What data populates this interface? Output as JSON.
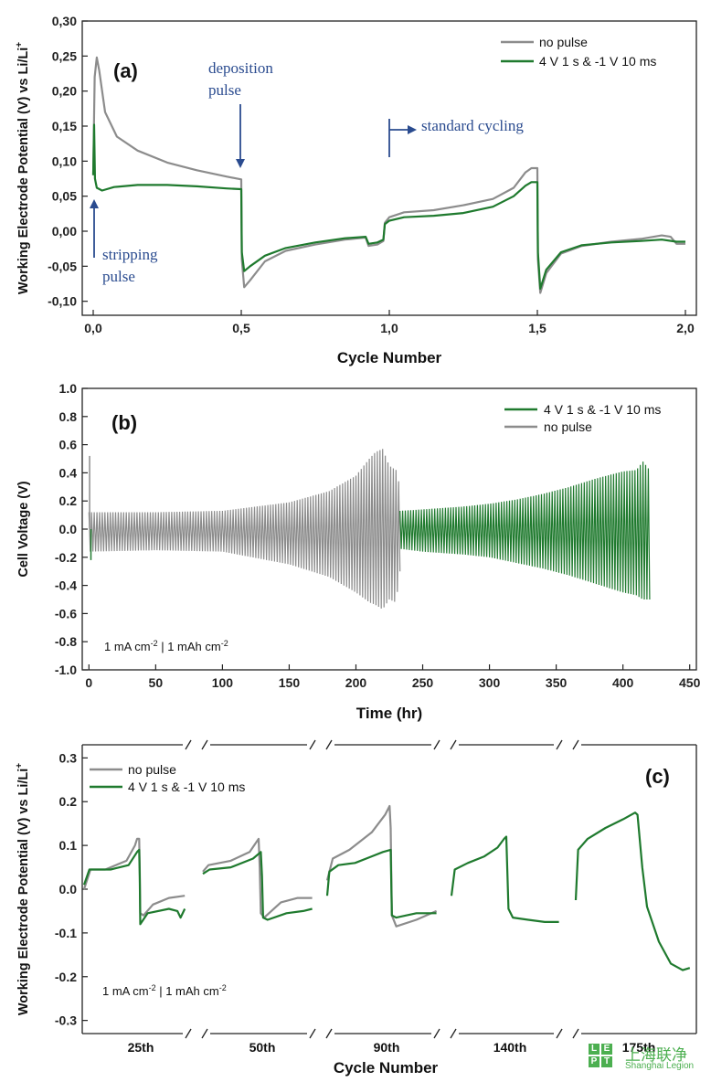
{
  "colors": {
    "no_pulse": "#8c8c8c",
    "pulse": "#1f7a2e",
    "annotation": "#2a4b8f"
  },
  "chart_data": [
    {
      "panel": "(a)",
      "type": "line",
      "xlabel": "Cycle Number",
      "ylabel": "Working Electrode Potential (V) vs Li/Li",
      "ylabel_sup": "+",
      "xlim": [
        0,
        2.0
      ],
      "ylim": [
        -0.12,
        0.3
      ],
      "xticks": [
        0,
        0.5,
        1.0,
        1.5,
        2.0
      ],
      "xtick_labels": [
        "0,0",
        "0,5",
        "1,0",
        "1,5",
        "2,0"
      ],
      "yticks": [
        -0.1,
        -0.05,
        0,
        0.05,
        0.1,
        0.15,
        0.2,
        0.25,
        0.3
      ],
      "ytick_labels": [
        "-0,10",
        "-0,05",
        "0,00",
        "0,05",
        "0,10",
        "0,15",
        "0,20",
        "0,25",
        "0,30"
      ],
      "legend": [
        "no pulse",
        "4 V 1 s & -1 V 10 ms"
      ],
      "annotations": {
        "deposition": [
          "deposition",
          "pulse"
        ],
        "stripping": [
          "stripping",
          "pulse"
        ],
        "standard": "standard cycling"
      },
      "series": [
        {
          "name": "no pulse",
          "points": [
            [
              0,
              0.08
            ],
            [
              0.005,
              0.22
            ],
            [
              0.012,
              0.248
            ],
            [
              0.02,
              0.23
            ],
            [
              0.04,
              0.17
            ],
            [
              0.08,
              0.135
            ],
            [
              0.15,
              0.115
            ],
            [
              0.25,
              0.098
            ],
            [
              0.35,
              0.087
            ],
            [
              0.45,
              0.078
            ],
            [
              0.5,
              0.074
            ],
            [
              0.502,
              -0.04
            ],
            [
              0.51,
              -0.08
            ],
            [
              0.53,
              -0.07
            ],
            [
              0.58,
              -0.043
            ],
            [
              0.65,
              -0.028
            ],
            [
              0.75,
              -0.019
            ],
            [
              0.85,
              -0.012
            ],
            [
              0.92,
              -0.009
            ],
            [
              0.93,
              -0.021
            ],
            [
              0.96,
              -0.019
            ],
            [
              0.98,
              -0.014
            ],
            [
              0.985,
              0.012
            ],
            [
              1.0,
              0.02
            ],
            [
              1.05,
              0.027
            ],
            [
              1.15,
              0.03
            ],
            [
              1.25,
              0.037
            ],
            [
              1.35,
              0.046
            ],
            [
              1.42,
              0.062
            ],
            [
              1.46,
              0.084
            ],
            [
              1.48,
              0.09
            ],
            [
              1.5,
              0.09
            ],
            [
              1.502,
              -0.04
            ],
            [
              1.51,
              -0.088
            ],
            [
              1.53,
              -0.06
            ],
            [
              1.58,
              -0.032
            ],
            [
              1.65,
              -0.021
            ],
            [
              1.75,
              -0.015
            ],
            [
              1.85,
              -0.011
            ],
            [
              1.92,
              -0.006
            ],
            [
              1.95,
              -0.008
            ],
            [
              1.97,
              -0.018
            ],
            [
              2.0,
              -0.018
            ]
          ]
        },
        {
          "name": "4 V 1 s & -1 V 10 ms",
          "points": [
            [
              0,
              0.08
            ],
            [
              0.003,
              0.152
            ],
            [
              0.006,
              0.075
            ],
            [
              0.012,
              0.062
            ],
            [
              0.03,
              0.058
            ],
            [
              0.07,
              0.063
            ],
            [
              0.15,
              0.066
            ],
            [
              0.25,
              0.066
            ],
            [
              0.35,
              0.064
            ],
            [
              0.45,
              0.061
            ],
            [
              0.5,
              0.06
            ],
            [
              0.502,
              -0.03
            ],
            [
              0.51,
              -0.057
            ],
            [
              0.53,
              -0.05
            ],
            [
              0.58,
              -0.035
            ],
            [
              0.65,
              -0.024
            ],
            [
              0.75,
              -0.016
            ],
            [
              0.85,
              -0.01
            ],
            [
              0.92,
              -0.008
            ],
            [
              0.93,
              -0.018
            ],
            [
              0.96,
              -0.016
            ],
            [
              0.98,
              -0.012
            ],
            [
              0.985,
              0.01
            ],
            [
              1.0,
              0.015
            ],
            [
              1.05,
              0.02
            ],
            [
              1.15,
              0.022
            ],
            [
              1.25,
              0.026
            ],
            [
              1.35,
              0.035
            ],
            [
              1.42,
              0.05
            ],
            [
              1.46,
              0.065
            ],
            [
              1.48,
              0.07
            ],
            [
              1.5,
              0.07
            ],
            [
              1.502,
              -0.03
            ],
            [
              1.51,
              -0.082
            ],
            [
              1.53,
              -0.055
            ],
            [
              1.58,
              -0.03
            ],
            [
              1.65,
              -0.02
            ],
            [
              1.75,
              -0.016
            ],
            [
              1.85,
              -0.014
            ],
            [
              1.92,
              -0.012
            ],
            [
              1.97,
              -0.015
            ],
            [
              2.0,
              -0.015
            ]
          ]
        }
      ]
    },
    {
      "panel": "(b)",
      "type": "line",
      "xlabel": "Time (hr)",
      "ylabel": "Cell Voltage (V)",
      "xlim": [
        -5,
        455
      ],
      "ylim": [
        -1.0,
        1.0
      ],
      "xticks": [
        0,
        50,
        100,
        150,
        200,
        250,
        300,
        350,
        400,
        450
      ],
      "xtick_labels": [
        "0",
        "50",
        "100",
        "150",
        "200",
        "250",
        "300",
        "350",
        "400",
        "450"
      ],
      "yticks": [
        -1.0,
        -0.8,
        -0.6,
        -0.4,
        -0.2,
        0,
        0.2,
        0.4,
        0.6,
        0.8,
        1.0
      ],
      "ytick_labels": [
        "-1.0",
        "-0.8",
        "-0.6",
        "-0.4",
        "-0.2",
        "0.0",
        "0.2",
        "0.4",
        "0.6",
        "0.8",
        "1.0"
      ],
      "legend": [
        "4 V 1 s & -1 V 10 ms",
        "no pulse"
      ],
      "condition": "1 mA cm",
      "condition_sup": "-2",
      "condition_mid": " | 1 mAh cm",
      "series": [
        {
          "name": "no pulse",
          "t_end": 233,
          "envelope_time": [
            0,
            50,
            100,
            150,
            180,
            200,
            210,
            215,
            220,
            225,
            230,
            233
          ],
          "envelope_upper": [
            0.12,
            0.12,
            0.13,
            0.19,
            0.27,
            0.38,
            0.5,
            0.55,
            0.57,
            0.45,
            0.42,
            0.3
          ],
          "envelope_lower": [
            -0.16,
            -0.15,
            -0.16,
            -0.25,
            -0.34,
            -0.45,
            -0.52,
            -0.54,
            -0.57,
            -0.5,
            -0.52,
            -0.3
          ],
          "spike": 0.52
        },
        {
          "name": "4 V 1 s & -1 V 10 ms",
          "t_start": 233,
          "t_end": 420,
          "envelope_time": [
            233,
            250,
            280,
            300,
            320,
            340,
            360,
            380,
            400,
            410,
            415,
            420
          ],
          "envelope_upper": [
            0.13,
            0.14,
            0.16,
            0.18,
            0.21,
            0.25,
            0.3,
            0.36,
            0.41,
            0.42,
            0.48,
            0.42
          ],
          "envelope_lower": [
            -0.14,
            -0.16,
            -0.18,
            -0.2,
            -0.24,
            -0.28,
            -0.33,
            -0.39,
            -0.45,
            -0.47,
            -0.5,
            -0.5
          ]
        }
      ]
    },
    {
      "panel": "(c)",
      "type": "line",
      "xlabel": "Cycle Number",
      "ylabel": "Working Electrode Potential (V) vs Li/Li",
      "ylabel_sup": "+",
      "ylim": [
        -0.33,
        0.33
      ],
      "yticks": [
        -0.3,
        -0.2,
        -0.1,
        0,
        0.1,
        0.2,
        0.3
      ],
      "ytick_labels": [
        "-0.3",
        "-0.2",
        "-0.1",
        "0.0",
        "0.1",
        "0.2",
        "0.3"
      ],
      "segments": [
        "25th",
        "50th",
        "90th",
        "140th",
        "175th"
      ],
      "legend": [
        "no pulse",
        "4 V 1 s & -1 V 10 ms"
      ],
      "condition": "1 mA cm",
      "condition_sup": "-2",
      "condition_mid": " | 1 mAh cm",
      "series": [
        {
          "name": "no pulse",
          "segments": [
            [
              [
                0.0,
                0.0
              ],
              [
                0.06,
                0.045
              ],
              [
                0.2,
                0.045
              ],
              [
                0.4,
                0.065
              ],
              [
                0.48,
                0.1
              ],
              [
                0.5,
                0.115
              ],
              [
                0.52,
                0.115
              ],
              [
                0.525,
                0.05
              ],
              [
                0.53,
                -0.055
              ],
              [
                0.56,
                -0.06
              ],
              [
                0.65,
                -0.035
              ],
              [
                0.8,
                -0.02
              ],
              [
                0.95,
                -0.015
              ]
            ],
            [
              [
                0.0,
                0.04
              ],
              [
                0.05,
                0.055
              ],
              [
                0.25,
                0.065
              ],
              [
                0.42,
                0.085
              ],
              [
                0.5,
                0.115
              ],
              [
                0.51,
                0.05
              ],
              [
                0.52,
                -0.055
              ],
              [
                0.55,
                -0.065
              ],
              [
                0.7,
                -0.03
              ],
              [
                0.85,
                -0.02
              ],
              [
                0.98,
                -0.02
              ]
            ],
            [
              [
                0.0,
                0.02
              ],
              [
                0.05,
                0.07
              ],
              [
                0.2,
                0.09
              ],
              [
                0.4,
                0.13
              ],
              [
                0.52,
                0.17
              ],
              [
                0.56,
                0.19
              ],
              [
                0.57,
                0.14
              ],
              [
                0.58,
                -0.06
              ],
              [
                0.62,
                -0.085
              ],
              [
                0.8,
                -0.07
              ],
              [
                0.98,
                -0.05
              ]
            ],
            [],
            []
          ]
        },
        {
          "name": "4 V 1 s & -1 V 10 ms",
          "segments": [
            [
              [
                0.0,
                0.01
              ],
              [
                0.05,
                0.045
              ],
              [
                0.25,
                0.045
              ],
              [
                0.42,
                0.055
              ],
              [
                0.5,
                0.085
              ],
              [
                0.52,
                0.09
              ],
              [
                0.525,
                0.03
              ],
              [
                0.53,
                -0.08
              ],
              [
                0.6,
                -0.055
              ],
              [
                0.8,
                -0.045
              ],
              [
                0.88,
                -0.05
              ],
              [
                0.91,
                -0.065
              ],
              [
                0.95,
                -0.045
              ]
            ],
            [
              [
                0.0,
                0.035
              ],
              [
                0.06,
                0.045
              ],
              [
                0.25,
                0.05
              ],
              [
                0.45,
                0.07
              ],
              [
                0.52,
                0.085
              ],
              [
                0.53,
                0.03
              ],
              [
                0.54,
                -0.065
              ],
              [
                0.58,
                -0.07
              ],
              [
                0.75,
                -0.055
              ],
              [
                0.9,
                -0.05
              ],
              [
                0.98,
                -0.045
              ]
            ],
            [
              [
                0.0,
                -0.015
              ],
              [
                0.02,
                0.04
              ],
              [
                0.1,
                0.055
              ],
              [
                0.25,
                0.06
              ],
              [
                0.4,
                0.075
              ],
              [
                0.5,
                0.085
              ],
              [
                0.57,
                0.09
              ],
              [
                0.58,
                -0.06
              ],
              [
                0.62,
                -0.065
              ],
              [
                0.8,
                -0.055
              ],
              [
                0.98,
                -0.055
              ]
            ],
            [
              [
                0.0,
                -0.015
              ],
              [
                0.03,
                0.045
              ],
              [
                0.15,
                0.06
              ],
              [
                0.3,
                0.075
              ],
              [
                0.42,
                0.095
              ],
              [
                0.48,
                0.115
              ],
              [
                0.5,
                0.12
              ],
              [
                0.52,
                -0.045
              ],
              [
                0.56,
                -0.065
              ],
              [
                0.7,
                -0.07
              ],
              [
                0.85,
                -0.075
              ],
              [
                0.98,
                -0.075
              ]
            ],
            [
              [
                0.0,
                -0.025
              ],
              [
                0.02,
                0.09
              ],
              [
                0.1,
                0.115
              ],
              [
                0.25,
                0.14
              ],
              [
                0.4,
                0.16
              ],
              [
                0.5,
                0.175
              ],
              [
                0.52,
                0.17
              ],
              [
                0.56,
                0.05
              ],
              [
                0.6,
                -0.04
              ],
              [
                0.7,
                -0.12
              ],
              [
                0.8,
                -0.17
              ],
              [
                0.9,
                -0.185
              ],
              [
                0.96,
                -0.18
              ]
            ]
          ]
        }
      ]
    }
  ],
  "watermark": {
    "badge": [
      "L",
      "E",
      "P",
      "T"
    ],
    "cn": "上海联净",
    "en": "Shanghai Legion"
  }
}
